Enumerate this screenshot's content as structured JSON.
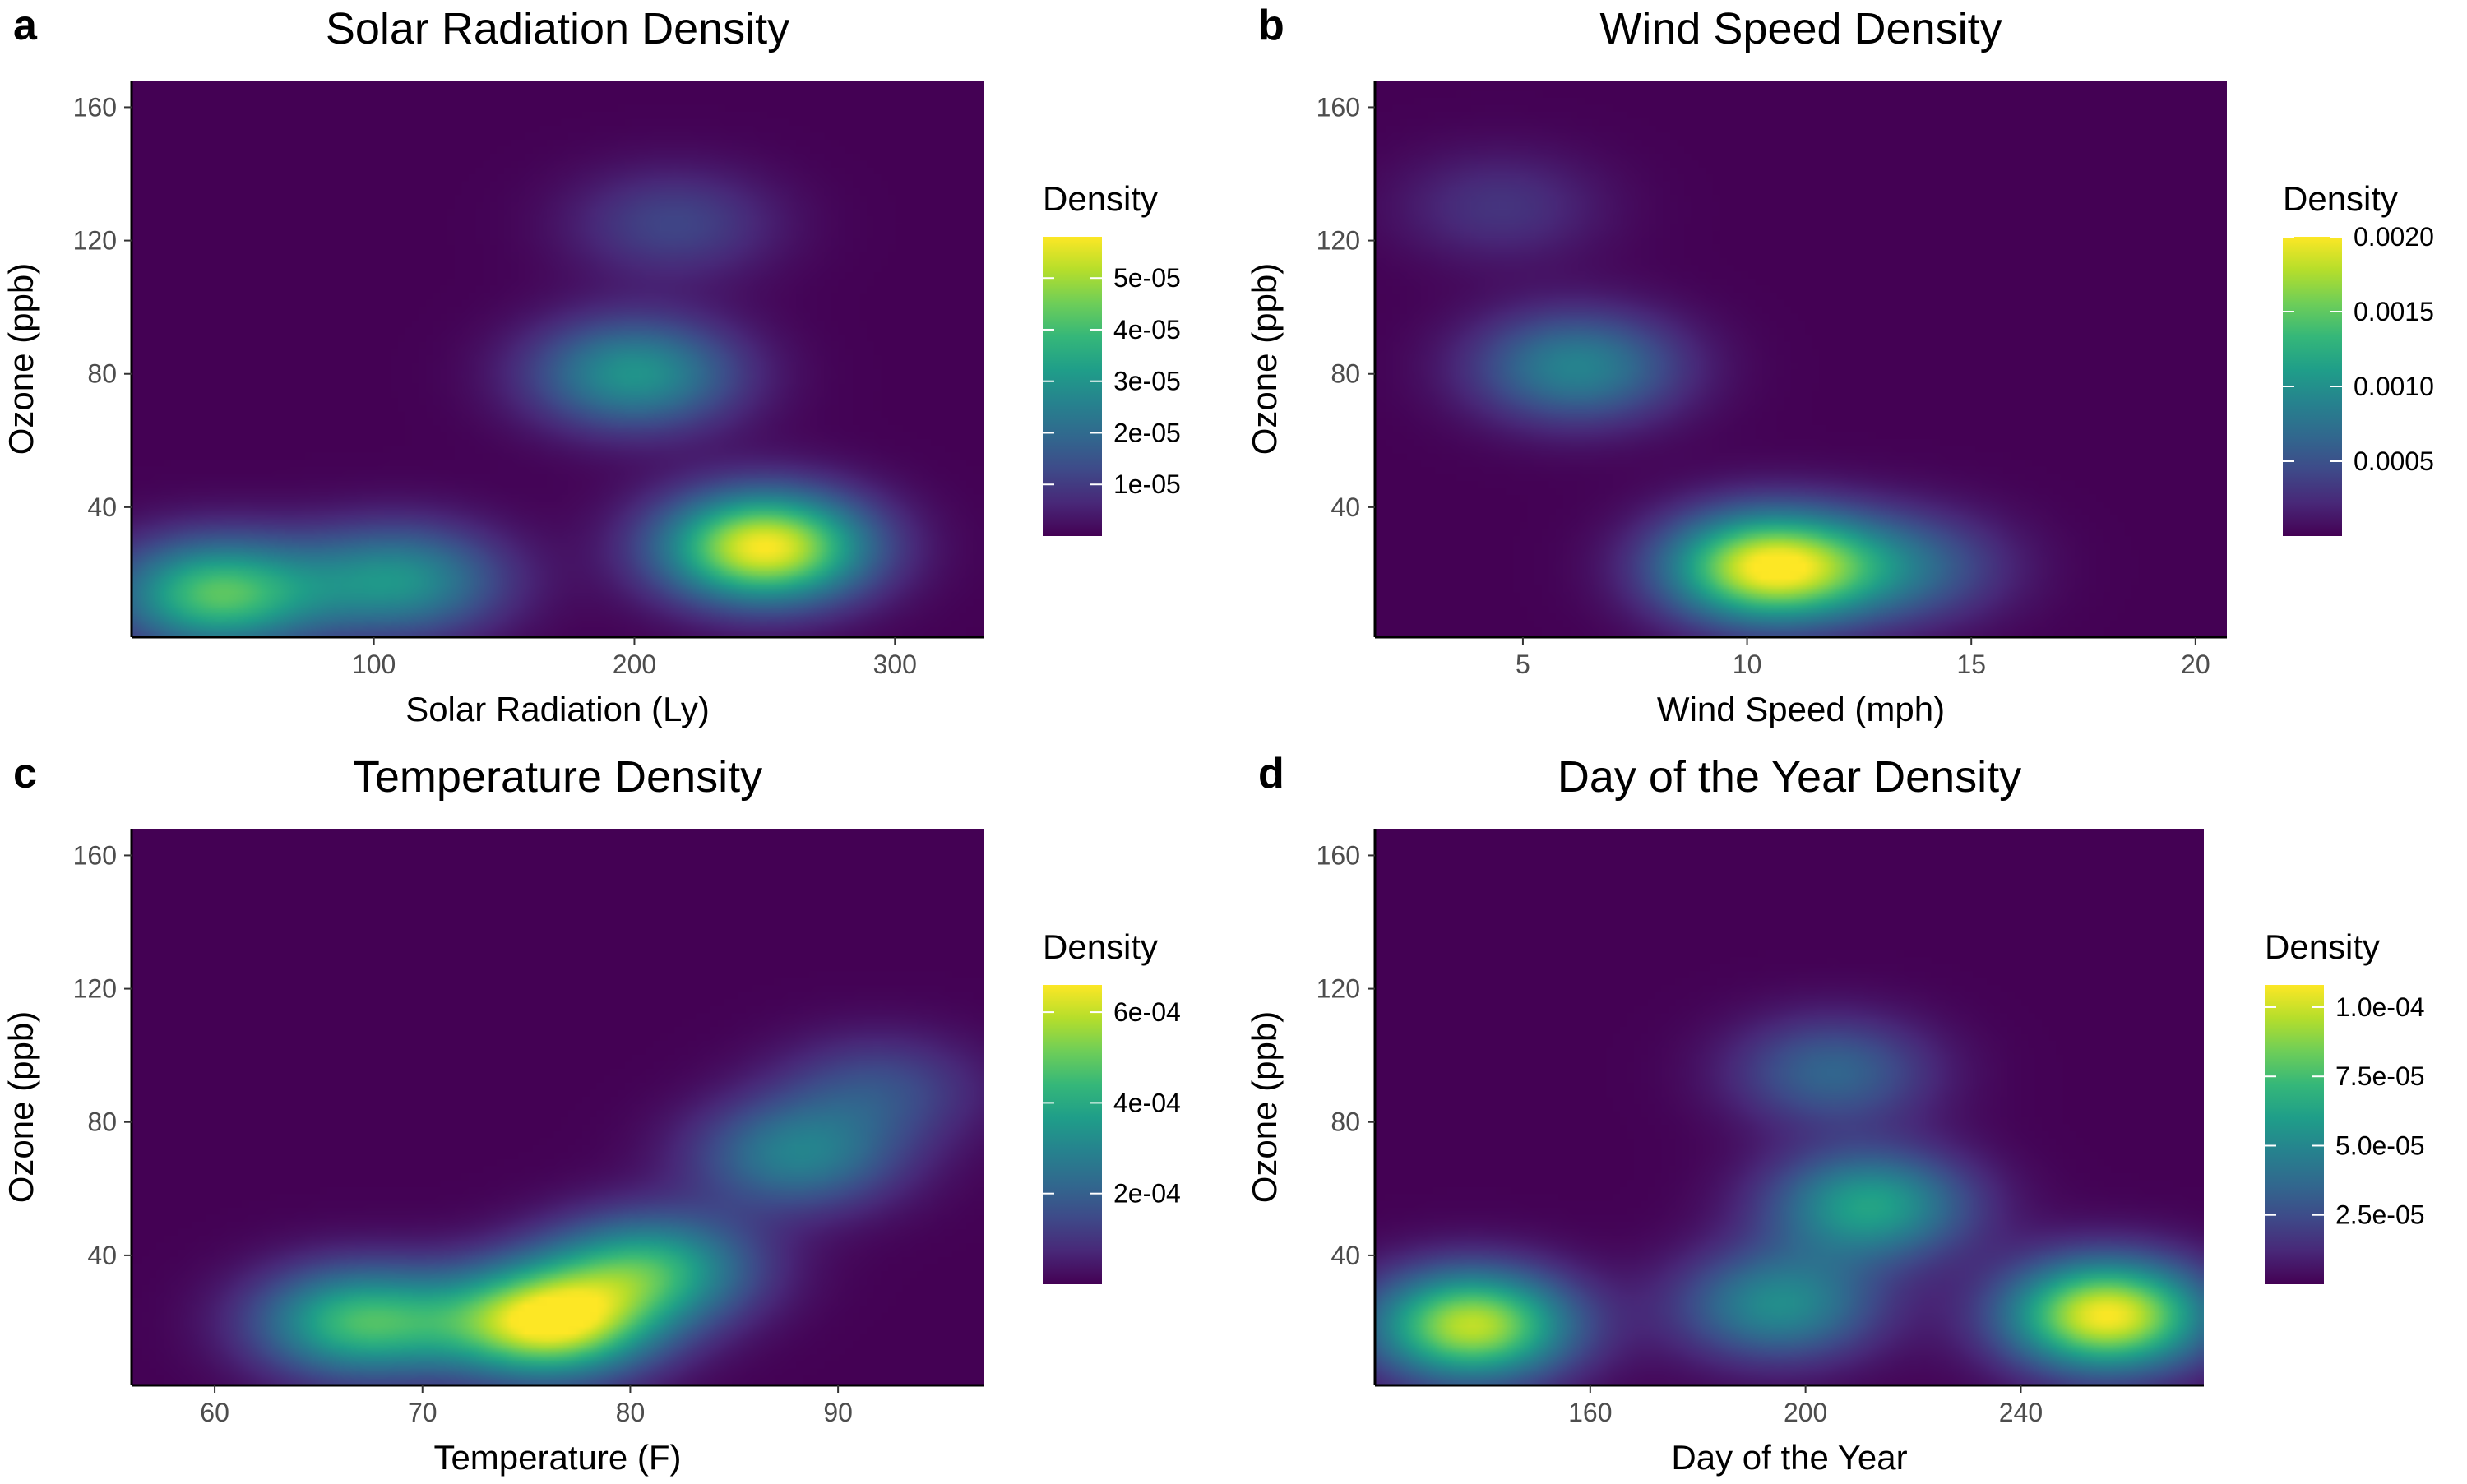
{
  "figure": {
    "colormap": [
      "#440154",
      "#482878",
      "#3e4a89",
      "#31688e",
      "#26828e",
      "#1f9e89",
      "#35b779",
      "#6ece58",
      "#b5de2b",
      "#fde725"
    ]
  },
  "chart_data": [
    {
      "type": "heatmap",
      "panel_letter": "a",
      "title": "Solar Radiation Density",
      "xlabel": "Solar Radiation (Ly)",
      "ylabel": "Ozone (ppb)",
      "xlim": [
        7,
        334
      ],
      "ylim": [
        1,
        168
      ],
      "x_ticks": [
        100,
        200,
        300
      ],
      "y_ticks": [
        40,
        80,
        120,
        160
      ],
      "legend": {
        "title": "Density",
        "position": "right",
        "max": 5.8e-05,
        "ticks": [
          {
            "value": 1e-05,
            "label": "1e-05"
          },
          {
            "value": 2e-05,
            "label": "2e-05"
          },
          {
            "value": 3e-05,
            "label": "3e-05"
          },
          {
            "value": 4e-05,
            "label": "4e-05"
          },
          {
            "value": 5e-05,
            "label": "5e-05"
          }
        ]
      },
      "density_peaks": [
        {
          "x": 250,
          "y": 28,
          "value": 5.8e-05
        },
        {
          "x": 40,
          "y": 14,
          "value": 4.2e-05
        },
        {
          "x": 110,
          "y": 18,
          "value": 2.9e-05
        },
        {
          "x": 200,
          "y": 80,
          "value": 3e-05
        },
        {
          "x": 215,
          "y": 125,
          "value": 1.2e-05
        }
      ]
    },
    {
      "type": "heatmap",
      "panel_letter": "b",
      "title": "Wind Speed Density",
      "xlabel": "Wind Speed (mph)",
      "ylabel": "Ozone (ppb)",
      "xlim": [
        1.7,
        20.7
      ],
      "ylim": [
        1,
        168
      ],
      "x_ticks": [
        5,
        10,
        15,
        20
      ],
      "y_ticks": [
        40,
        80,
        120,
        160
      ],
      "legend": {
        "title": "Density",
        "position": "right",
        "max": 0.002,
        "ticks": [
          {
            "value": 0.0005,
            "label": "0.0005"
          },
          {
            "value": 0.001,
            "label": "0.0010"
          },
          {
            "value": 0.0015,
            "label": "0.0015"
          },
          {
            "value": 0.002,
            "label": "0.0020"
          }
        ]
      },
      "density_peaks": [
        {
          "x": 10.5,
          "y": 22,
          "value": 0.002
        },
        {
          "x": 6.2,
          "y": 82,
          "value": 0.0009
        },
        {
          "x": 13.5,
          "y": 22,
          "value": 0.0006
        },
        {
          "x": 4.5,
          "y": 130,
          "value": 0.0003
        }
      ]
    },
    {
      "type": "heatmap",
      "panel_letter": "c",
      "title": "Temperature Density",
      "xlabel": "Temperature (F)",
      "ylabel": "Ozone (ppb)",
      "xlim": [
        56,
        97
      ],
      "ylim": [
        1,
        168
      ],
      "x_ticks": [
        60,
        70,
        80,
        90
      ],
      "y_ticks": [
        40,
        80,
        120,
        160
      ],
      "legend": {
        "title": "Density",
        "position": "right",
        "max": 0.00066,
        "ticks": [
          {
            "value": 0.0002,
            "label": "2e-04"
          },
          {
            "value": 0.0004,
            "label": "4e-04"
          },
          {
            "value": 0.0006,
            "label": "6e-04"
          }
        ]
      },
      "density_peaks": [
        {
          "x": 76,
          "y": 20,
          "value": 0.00066
        },
        {
          "x": 67,
          "y": 20,
          "value": 0.00045
        },
        {
          "x": 81,
          "y": 36,
          "value": 0.0004
        },
        {
          "x": 88,
          "y": 70,
          "value": 0.00028
        },
        {
          "x": 92,
          "y": 90,
          "value": 0.00015
        }
      ]
    },
    {
      "type": "heatmap",
      "panel_letter": "d",
      "title": "Day of the Year Density",
      "xlabel": "Day of the Year",
      "ylabel": "Ozone (ppb)",
      "xlim": [
        120,
        274
      ],
      "ylim": [
        1,
        168
      ],
      "x_ticks": [
        160,
        200,
        240
      ],
      "y_ticks": [
        40,
        80,
        120,
        160
      ],
      "legend": {
        "title": "Density",
        "position": "right",
        "max": 0.000108,
        "ticks": [
          {
            "value": 2.5e-05,
            "label": "2.5e-05"
          },
          {
            "value": 5e-05,
            "label": "5.0e-05"
          },
          {
            "value": 7.5e-05,
            "label": "7.5e-05"
          },
          {
            "value": 0.0001,
            "label": "1.0e-04"
          }
        ]
      },
      "density_peaks": [
        {
          "x": 256,
          "y": 22,
          "value": 0.000108
        },
        {
          "x": 138,
          "y": 19,
          "value": 9.8e-05
        },
        {
          "x": 212,
          "y": 55,
          "value": 6.2e-05
        },
        {
          "x": 195,
          "y": 25,
          "value": 5.2e-05
        },
        {
          "x": 205,
          "y": 95,
          "value": 3.5e-05
        }
      ]
    }
  ]
}
